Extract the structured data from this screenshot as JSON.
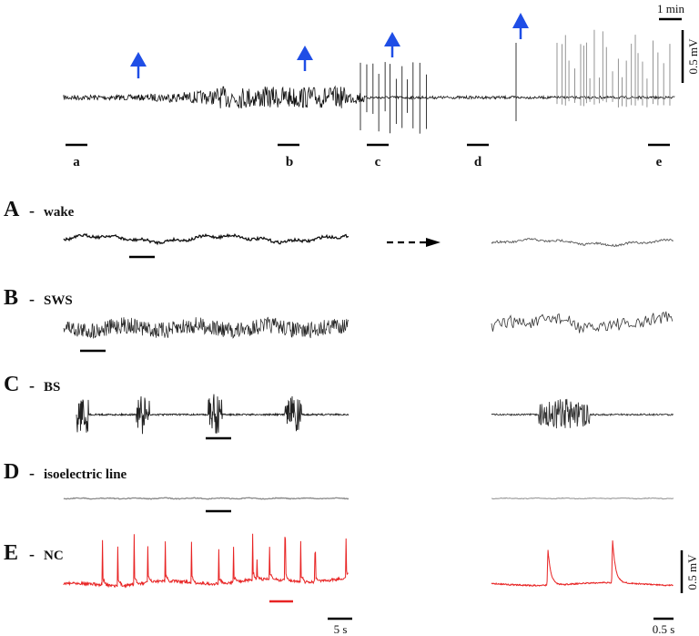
{
  "overview": {
    "segment_labels": [
      "a",
      "b",
      "c",
      "d",
      "e"
    ],
    "time_scale": "1 min",
    "amplitude_scale": "0.5 mV",
    "arrow_color": "#1f4ee6",
    "arrow_count": 4
  },
  "panels": [
    {
      "letter": "A",
      "dash": "-",
      "name": "wake",
      "color": "#111111"
    },
    {
      "letter": "B",
      "dash": "-",
      "name": "SWS",
      "color": "#111111"
    },
    {
      "letter": "C",
      "dash": "-",
      "name": "BS",
      "color": "#111111"
    },
    {
      "letter": "D",
      "dash": "-",
      "name": "isoelectric line",
      "color": "#777777"
    },
    {
      "letter": "E",
      "dash": "-",
      "name": "NC",
      "color": "#e82424"
    }
  ],
  "scale_bars": {
    "left_time": "5 s",
    "right_time": "0.5 s",
    "right_amplitude": "0.5 mV"
  }
}
